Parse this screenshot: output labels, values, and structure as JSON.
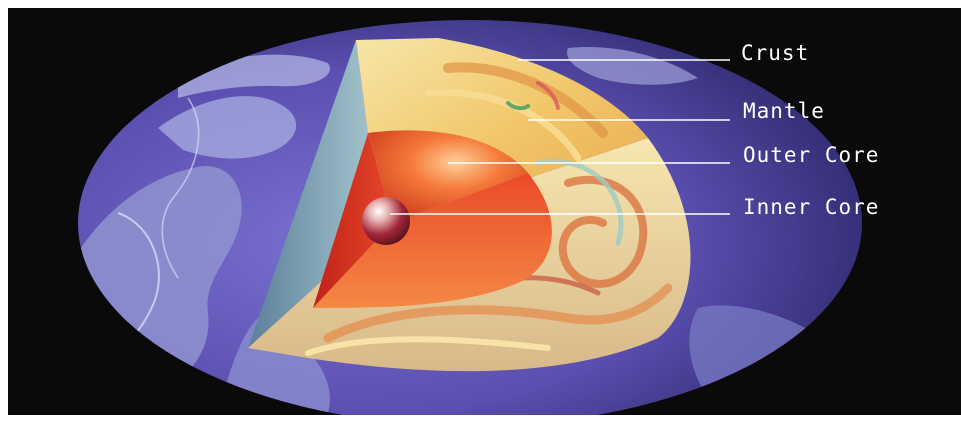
{
  "diagram": {
    "labels": {
      "crust": "Crust",
      "mantle": "Mantle",
      "outer_core": "Outer Core",
      "inner_core": "Inner Core"
    }
  },
  "colors": {
    "background": "#0a0a0a",
    "ocean": "#5b4fb0",
    "continent": "#8f93cf",
    "mantle": "#f3c86a",
    "outer_core": "#f0542c",
    "inner_core": "#7a1a1a",
    "leader_line": "#ffffff"
  }
}
